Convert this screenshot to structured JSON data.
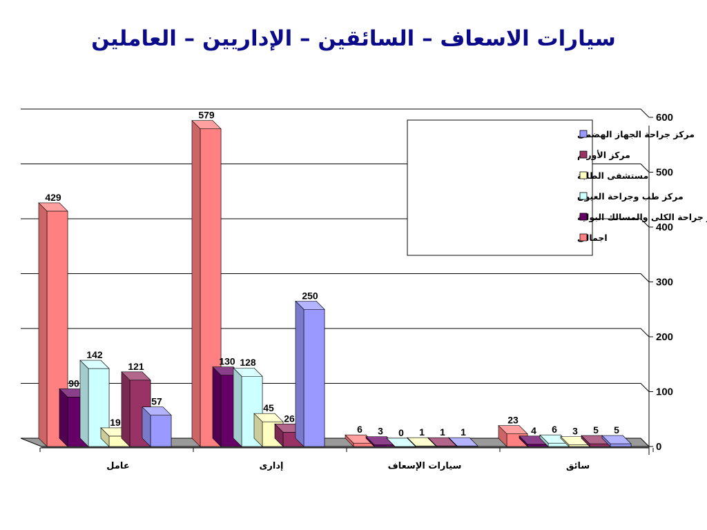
{
  "title": "سيارات الاسعاف – السائقين – الإداريين – العاملين",
  "chart_data": {
    "type": "bar",
    "title": "سيارات الاسعاف – السائقين – الإداريين – العاملين",
    "xlabel": "",
    "ylabel": "",
    "ylim": [
      0,
      600
    ],
    "yticks": [
      0,
      100,
      200,
      300,
      400,
      500,
      600
    ],
    "grid": true,
    "legend_position": "top-right",
    "categories": [
      "عامل",
      "إدارى",
      "سيارات الإسعاف",
      "سائق"
    ],
    "series": [
      {
        "name": "اجمالى",
        "values": [
          429,
          579,
          6,
          23
        ],
        "color": "#ff8080"
      },
      {
        "name": "مركز جراحة الكلى والمسالك البولية",
        "values": [
          90,
          130,
          3,
          4
        ],
        "color": "#660066"
      },
      {
        "name": "مركز طب وجراحة العيون",
        "values": [
          142,
          128,
          0,
          6
        ],
        "color": "#ccffff"
      },
      {
        "name": "مستشفى الطلبة",
        "values": [
          19,
          45,
          1,
          3
        ],
        "color": "#ffffc0"
      },
      {
        "name": "مركز الأورام",
        "values": [
          121,
          26,
          1,
          5
        ],
        "color": "#993366"
      },
      {
        "name": "مركز جراحة الجهاز الهضمى",
        "values": [
          57,
          250,
          1,
          5
        ],
        "color": "#9999ff"
      }
    ],
    "legend_order": [
      5,
      4,
      3,
      2,
      1,
      0
    ]
  }
}
